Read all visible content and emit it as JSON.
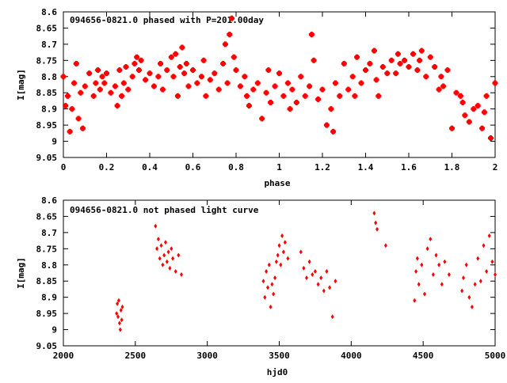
{
  "chart_data": [
    {
      "type": "scatter",
      "title": "094656-0821.0 phased with P=201.00day",
      "xlabel": "phase",
      "ylabel": "I[mag]",
      "xlim": [
        0,
        2
      ],
      "ylim": [
        8.6,
        9.05
      ],
      "y_inverted": true,
      "grid": false,
      "xticks": [
        "0",
        "0.2",
        "0.4",
        "0.6",
        "0.8",
        "1",
        "1.2",
        "1.4",
        "1.6",
        "1.8",
        "2"
      ],
      "yticks": [
        "8.6",
        "8.65",
        "8.7",
        "8.75",
        "8.8",
        "8.85",
        "8.9",
        "8.95",
        "9",
        "9.05"
      ],
      "marker_color": "#ff0000",
      "series": [
        {
          "marker": "star",
          "x": [
            0.0,
            0.01,
            0.02,
            0.03,
            0.04,
            0.05,
            0.06,
            0.07,
            0.08,
            0.09,
            0.1,
            0.12,
            0.14,
            0.15,
            0.16,
            0.17,
            0.18,
            0.19,
            0.2,
            0.22,
            0.24,
            0.25,
            0.26,
            0.27,
            0.28,
            0.29,
            0.3,
            0.32,
            0.33,
            0.34,
            0.35,
            0.36,
            0.38,
            0.4,
            0.42,
            0.44,
            0.45,
            0.46,
            0.48,
            0.5,
            0.51,
            0.52,
            0.53,
            0.54,
            0.55,
            0.56,
            0.57,
            0.58,
            0.6,
            0.62,
            0.64,
            0.65,
            0.66,
            0.68,
            0.7,
            0.72,
            0.74,
            0.75,
            0.76,
            0.77,
            0.78,
            0.79,
            0.8,
            0.82,
            0.84,
            0.85,
            0.86,
            0.88,
            0.9,
            0.92,
            0.94,
            0.95,
            0.96,
            0.98,
            1.0,
            1.02,
            1.04,
            1.05,
            1.06,
            1.08,
            1.1,
            1.12,
            1.14,
            1.15,
            1.16,
            1.18,
            1.2,
            1.22,
            1.24,
            1.25,
            1.26,
            1.28,
            1.3,
            1.32,
            1.34,
            1.35,
            1.36,
            1.38,
            1.4,
            1.42,
            1.44,
            1.45,
            1.46,
            1.48,
            1.5,
            1.52,
            1.54,
            1.55,
            1.56,
            1.58,
            1.6,
            1.62,
            1.64,
            1.65,
            1.66,
            1.68,
            1.7,
            1.72,
            1.74,
            1.75,
            1.76,
            1.78,
            1.8,
            1.82,
            1.84,
            1.85,
            1.86,
            1.88,
            1.9,
            1.92,
            1.94,
            1.95,
            1.96,
            1.98,
            2.0
          ],
          "y": [
            8.8,
            8.89,
            8.86,
            8.97,
            8.9,
            8.82,
            8.76,
            8.93,
            8.85,
            8.96,
            8.83,
            8.79,
            8.86,
            8.82,
            8.78,
            8.84,
            8.8,
            8.82,
            8.79,
            8.85,
            8.83,
            8.89,
            8.78,
            8.86,
            8.82,
            8.77,
            8.84,
            8.8,
            8.76,
            8.74,
            8.78,
            8.75,
            8.81,
            8.79,
            8.83,
            8.8,
            8.76,
            8.84,
            8.78,
            8.74,
            8.8,
            8.73,
            8.86,
            8.77,
            8.71,
            8.79,
            8.76,
            8.83,
            8.78,
            8.82,
            8.8,
            8.75,
            8.86,
            8.81,
            8.79,
            8.84,
            8.76,
            8.7,
            8.82,
            8.67,
            8.62,
            8.74,
            8.78,
            8.83,
            8.8,
            8.86,
            8.89,
            8.84,
            8.82,
            8.93,
            8.85,
            8.78,
            8.88,
            8.83,
            8.79,
            8.86,
            8.82,
            8.9,
            8.84,
            8.88,
            8.8,
            8.86,
            8.83,
            8.67,
            8.75,
            8.87,
            8.84,
            8.95,
            8.9,
            8.97,
            8.82,
            8.86,
            8.76,
            8.84,
            8.8,
            8.86,
            8.74,
            8.82,
            8.78,
            8.76,
            8.72,
            8.81,
            8.86,
            8.77,
            8.79,
            8.75,
            8.79,
            8.73,
            8.76,
            8.75,
            8.77,
            8.73,
            8.78,
            8.75,
            8.72,
            8.8,
            8.74,
            8.77,
            8.84,
            8.8,
            8.83,
            8.78,
            8.96,
            8.85,
            8.86,
            8.88,
            8.92,
            8.94,
            8.9,
            8.89,
            8.96,
            8.91,
            8.86,
            8.99,
            8.82
          ]
        }
      ]
    },
    {
      "type": "scatter",
      "title": "094656-0821.0 not phased light curve",
      "xlabel": "hjd0",
      "ylabel": "I[mag]",
      "xlim": [
        2000,
        5000
      ],
      "ylim": [
        8.6,
        9.05
      ],
      "y_inverted": true,
      "grid": false,
      "xticks": [
        "2000",
        "2500",
        "3000",
        "3500",
        "4000",
        "4500",
        "5000"
      ],
      "yticks": [
        "8.6",
        "8.65",
        "8.7",
        "8.75",
        "8.8",
        "8.85",
        "8.9",
        "8.95",
        "9",
        "9.05"
      ],
      "marker_color": "#ff0000",
      "series": [
        {
          "marker": "diamond",
          "x": [
            2370,
            2375,
            2380,
            2385,
            2390,
            2395,
            2400,
            2405,
            2410,
            2640,
            2650,
            2660,
            2670,
            2680,
            2690,
            2700,
            2710,
            2720,
            2730,
            2740,
            2750,
            2760,
            2780,
            2800,
            2820,
            3390,
            3400,
            3410,
            3420,
            3430,
            3440,
            3450,
            3460,
            3470,
            3480,
            3490,
            3500,
            3510,
            3520,
            3530,
            3540,
            3560,
            3650,
            3670,
            3690,
            3710,
            3730,
            3750,
            3770,
            3790,
            3810,
            3830,
            3850,
            3870,
            3890,
            4160,
            4170,
            4180,
            4240,
            4440,
            4450,
            4460,
            4470,
            4490,
            4510,
            4530,
            4550,
            4570,
            4590,
            4610,
            4630,
            4650,
            4680,
            4770,
            4780,
            4800,
            4820,
            4840,
            4860,
            4880,
            4900,
            4920,
            4940,
            4960,
            4980,
            5000
          ],
          "y": [
            8.95,
            8.92,
            8.96,
            8.91,
            8.98,
            9.0,
            8.94,
            8.97,
            8.93,
            8.68,
            8.75,
            8.72,
            8.78,
            8.74,
            8.8,
            8.77,
            8.73,
            8.79,
            8.76,
            8.81,
            8.75,
            8.78,
            8.82,
            8.77,
            8.83,
            8.85,
            8.9,
            8.82,
            8.87,
            8.8,
            8.93,
            8.86,
            8.89,
            8.84,
            8.79,
            8.77,
            8.74,
            8.8,
            8.71,
            8.76,
            8.73,
            8.78,
            8.76,
            8.81,
            8.84,
            8.79,
            8.83,
            8.82,
            8.86,
            8.84,
            8.88,
            8.82,
            8.87,
            8.96,
            8.85,
            8.64,
            8.67,
            8.69,
            8.74,
            8.91,
            8.82,
            8.78,
            8.86,
            8.8,
            8.89,
            8.75,
            8.72,
            8.83,
            8.77,
            8.8,
            8.86,
            8.79,
            8.83,
            8.88,
            8.84,
            8.8,
            8.9,
            8.93,
            8.86,
            8.78,
            8.85,
            8.74,
            8.82,
            8.71,
            8.79,
            8.83
          ]
        }
      ]
    }
  ]
}
